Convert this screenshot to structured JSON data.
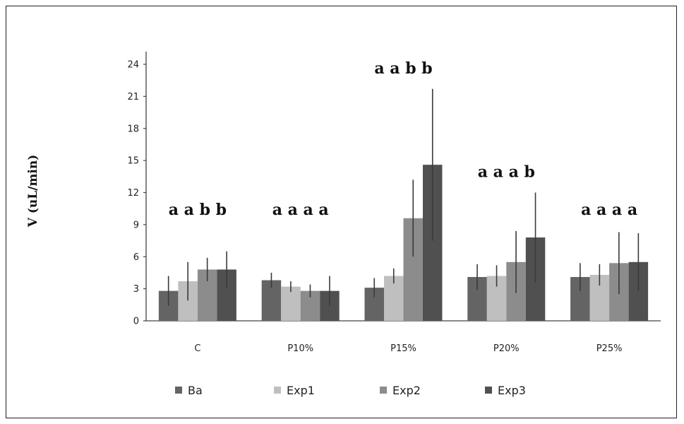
{
  "chart_data": {
    "type": "bar",
    "ylabel": "V (uL/min)",
    "xlabel": "",
    "ylim": [
      0,
      24
    ],
    "yticks": [
      0,
      3,
      6,
      9,
      12,
      15,
      18,
      21,
      24
    ],
    "categories": [
      "C",
      "P10%",
      "P15%",
      "P20%",
      "P25%"
    ],
    "series": [
      {
        "name": "Ba",
        "color": "#646464",
        "values": [
          2.8,
          3.8,
          3.1,
          4.1,
          4.1
        ],
        "errors": [
          1.4,
          0.7,
          0.9,
          1.2,
          1.3
        ]
      },
      {
        "name": "Exp1",
        "color": "#bfbfbf",
        "values": [
          3.7,
          3.2,
          4.2,
          4.2,
          4.3
        ],
        "errors": [
          1.8,
          0.5,
          0.7,
          1.0,
          1.0
        ]
      },
      {
        "name": "Exp2",
        "color": "#8c8c8c",
        "values": [
          4.8,
          2.8,
          9.6,
          5.5,
          5.4
        ],
        "errors": [
          1.1,
          0.6,
          3.6,
          2.9,
          2.9
        ]
      },
      {
        "name": "Exp3",
        "color": "#505050",
        "values": [
          4.8,
          2.8,
          14.6,
          7.8,
          5.5
        ],
        "errors": [
          1.7,
          1.4,
          7.1,
          4.2,
          2.7
        ]
      }
    ],
    "annotations": [
      "a a b b",
      "a a a a",
      "a a b b",
      "a a a b",
      "a a a a"
    ],
    "grid": false,
    "legend_position": "bottom"
  }
}
